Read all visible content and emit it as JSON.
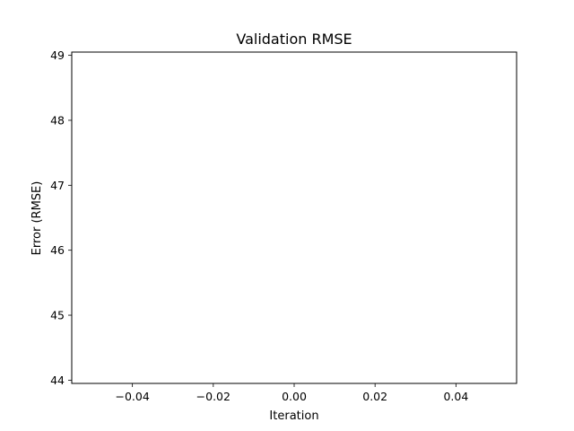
{
  "chart_data": {
    "type": "line",
    "title": "Validation RMSE",
    "xlabel": "Iteration",
    "ylabel": "Error (RMSE)",
    "xlim": [
      -0.055,
      0.055
    ],
    "ylim": [
      43.95,
      49.05
    ],
    "x_ticks": [
      -0.04,
      -0.02,
      0.0,
      0.02,
      0.04
    ],
    "x_tick_labels": [
      "−0.04",
      "−0.02",
      "0.00",
      "0.02",
      "0.04"
    ],
    "y_ticks": [
      44,
      45,
      46,
      47,
      48,
      49
    ],
    "y_tick_labels": [
      "44",
      "45",
      "46",
      "47",
      "48",
      "49"
    ],
    "series": [
      {
        "x": [],
        "y": []
      }
    ],
    "grid": false,
    "legend": "none"
  }
}
